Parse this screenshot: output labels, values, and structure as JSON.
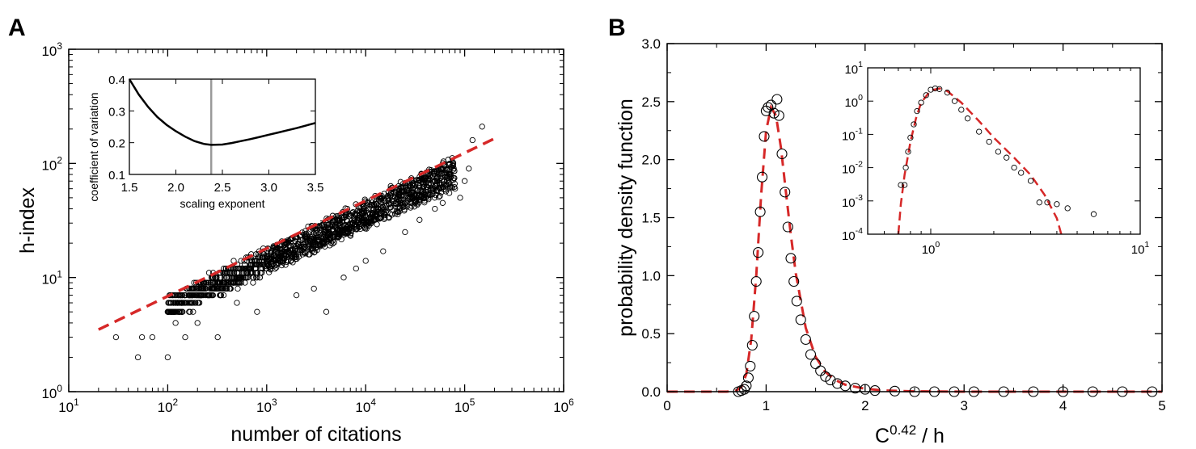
{
  "colors": {
    "fit_line": "#d62828",
    "markers": "#000000",
    "reference_line": "#9a9a9a",
    "axes": "#000000"
  },
  "chart_data": [
    {
      "panel": "A",
      "type": "scatter",
      "xlabel": "number of citations",
      "ylabel": "h-index",
      "xscale": "log",
      "yscale": "log",
      "xlim": [
        10,
        1000000
      ],
      "ylim": [
        1,
        1000
      ],
      "xticks": [
        10,
        100,
        1000,
        10000,
        100000,
        1000000
      ],
      "xtick_labels": [
        [
          "10",
          "1"
        ],
        [
          "10",
          "2"
        ],
        [
          "10",
          "3"
        ],
        [
          "10",
          "4"
        ],
        [
          "10",
          "5"
        ],
        [
          "10",
          "6"
        ]
      ],
      "yticks": [
        1,
        10,
        100,
        1000
      ],
      "ytick_labels": [
        [
          "10",
          "0"
        ],
        [
          "10",
          "1"
        ],
        [
          "10",
          "2"
        ],
        [
          "10",
          "3"
        ]
      ],
      "fit_line": {
        "style": "dashed",
        "x": [
          20,
          200000
        ],
        "y": [
          3.5,
          165
        ]
      },
      "scatter_points": [
        [
          30,
          3
        ],
        [
          50,
          2
        ],
        [
          55,
          3
        ],
        [
          70,
          3
        ],
        [
          100,
          2
        ],
        [
          120,
          4
        ],
        [
          150,
          3
        ],
        [
          200,
          4
        ],
        [
          320,
          3
        ],
        [
          500,
          6
        ],
        [
          800,
          5
        ],
        [
          2000,
          7
        ],
        [
          4000,
          5
        ],
        [
          3000,
          8
        ],
        [
          6000,
          10
        ],
        [
          8000,
          12
        ],
        [
          10000,
          14
        ],
        [
          15000,
          17
        ],
        [
          25000,
          25
        ],
        [
          35000,
          32
        ],
        [
          50000,
          40
        ],
        [
          60000,
          45
        ],
        [
          70000,
          55
        ],
        [
          80000,
          60
        ],
        [
          90000,
          50
        ],
        [
          100000,
          70
        ],
        [
          110000,
          90
        ],
        [
          120000,
          160
        ],
        [
          150000,
          210
        ]
      ],
      "inset": {
        "type": "line",
        "xlabel": "scaling exponent",
        "ylabel": "coefficient of variation",
        "xlim": [
          1.5,
          3.5
        ],
        "ylim": [
          0.1,
          0.4
        ],
        "xticks": [
          "1.5",
          "2.0",
          "2.5",
          "3.0",
          "3.5"
        ],
        "yticks": [
          "0.1",
          "0.2",
          "0.3",
          "0.4"
        ],
        "reference_x": 2.38,
        "curve": {
          "x": [
            1.5,
            1.6,
            1.7,
            1.8,
            1.9,
            2.0,
            2.1,
            2.2,
            2.3,
            2.38,
            2.5,
            2.6,
            2.7,
            2.8,
            2.9,
            3.0,
            3.1,
            3.2,
            3.3,
            3.4,
            3.5
          ],
          "y": [
            0.4,
            0.352,
            0.313,
            0.281,
            0.256,
            0.236,
            0.219,
            0.205,
            0.196,
            0.193,
            0.194,
            0.199,
            0.205,
            0.211,
            0.218,
            0.225,
            0.232,
            0.239,
            0.246,
            0.254,
            0.262
          ]
        }
      }
    },
    {
      "panel": "B",
      "type": "scatter",
      "xlabel": "C",
      "xlabel_sup": "0.42",
      "xlabel_suffix": " / h",
      "ylabel": "probability density function",
      "xlim": [
        0,
        5
      ],
      "ylim": [
        0,
        3.0
      ],
      "xticks": [
        "0",
        "1",
        "2",
        "3",
        "4",
        "5"
      ],
      "yticks": [
        "0.0",
        "0.5",
        "1.0",
        "1.5",
        "2.0",
        "2.5",
        "3.0"
      ],
      "scatter_points": [
        [
          0.72,
          0.0
        ],
        [
          0.75,
          0.01
        ],
        [
          0.78,
          0.02
        ],
        [
          0.8,
          0.05
        ],
        [
          0.82,
          0.12
        ],
        [
          0.84,
          0.22
        ],
        [
          0.86,
          0.4
        ],
        [
          0.88,
          0.65
        ],
        [
          0.9,
          0.95
        ],
        [
          0.92,
          1.2
        ],
        [
          0.94,
          1.55
        ],
        [
          0.96,
          1.85
        ],
        [
          0.98,
          2.2
        ],
        [
          1.0,
          2.42
        ],
        [
          1.02,
          2.45
        ],
        [
          1.05,
          2.47
        ],
        [
          1.08,
          2.4
        ],
        [
          1.11,
          2.52
        ],
        [
          1.13,
          2.38
        ],
        [
          1.16,
          2.05
        ],
        [
          1.19,
          1.72
        ],
        [
          1.22,
          1.42
        ],
        [
          1.25,
          1.15
        ],
        [
          1.28,
          0.95
        ],
        [
          1.31,
          0.78
        ],
        [
          1.35,
          0.62
        ],
        [
          1.4,
          0.45
        ],
        [
          1.45,
          0.32
        ],
        [
          1.5,
          0.24
        ],
        [
          1.55,
          0.18
        ],
        [
          1.6,
          0.13
        ],
        [
          1.65,
          0.1
        ],
        [
          1.72,
          0.07
        ],
        [
          1.8,
          0.05
        ],
        [
          1.9,
          0.03
        ],
        [
          2.0,
          0.02
        ],
        [
          2.1,
          0.01
        ],
        [
          2.3,
          0.005
        ],
        [
          2.5,
          0.0
        ],
        [
          2.7,
          0.0
        ],
        [
          2.9,
          0.0
        ],
        [
          3.1,
          0.0
        ],
        [
          3.4,
          0.0
        ],
        [
          3.7,
          0.0
        ],
        [
          4.0,
          0.0
        ],
        [
          4.3,
          0.0
        ],
        [
          4.6,
          0.0
        ],
        [
          4.9,
          0.0
        ]
      ],
      "fit_curve": {
        "style": "dashed",
        "x": [
          0.0,
          0.6,
          0.7,
          0.75,
          0.8,
          0.85,
          0.9,
          0.95,
          1.0,
          1.05,
          1.1,
          1.15,
          1.2,
          1.25,
          1.3,
          1.4,
          1.5,
          1.6,
          1.7,
          1.8,
          2.0,
          2.2,
          2.5,
          3.0,
          5.0
        ],
        "y": [
          0.0,
          0.0,
          0.01,
          0.04,
          0.15,
          0.45,
          1.0,
          1.7,
          2.25,
          2.45,
          2.38,
          2.1,
          1.72,
          1.35,
          1.02,
          0.55,
          0.3,
          0.17,
          0.1,
          0.06,
          0.025,
          0.01,
          0.003,
          0.0,
          0.0
        ]
      },
      "inset": {
        "type": "scatter",
        "xscale": "log",
        "yscale": "log",
        "xlim": [
          0.5,
          10
        ],
        "ylim": [
          0.0001,
          10
        ],
        "xticks": [
          1,
          10
        ],
        "xtick_labels": [
          [
            "10",
            "0"
          ],
          [
            "10",
            "1"
          ]
        ],
        "yticks": [
          0.0001,
          0.001,
          0.01,
          0.1,
          1,
          10
        ],
        "ytick_labels": [
          [
            "10",
            "-4"
          ],
          [
            "10",
            "-3"
          ],
          [
            "10",
            "-2"
          ],
          [
            "10",
            "-1"
          ],
          [
            "10",
            "0"
          ],
          [
            "10",
            "1"
          ]
        ],
        "scatter_points": [
          [
            0.72,
            0.003
          ],
          [
            0.75,
            0.003
          ],
          [
            0.76,
            0.01
          ],
          [
            0.78,
            0.03
          ],
          [
            0.8,
            0.08
          ],
          [
            0.83,
            0.2
          ],
          [
            0.86,
            0.5
          ],
          [
            0.9,
            0.9
          ],
          [
            0.95,
            1.5
          ],
          [
            1.0,
            2.2
          ],
          [
            1.05,
            2.4
          ],
          [
            1.1,
            2.3
          ],
          [
            1.2,
            1.8
          ],
          [
            1.3,
            1.0
          ],
          [
            1.4,
            0.55
          ],
          [
            1.5,
            0.3
          ],
          [
            1.7,
            0.12
          ],
          [
            1.9,
            0.06
          ],
          [
            2.1,
            0.03
          ],
          [
            2.3,
            0.02
          ],
          [
            2.5,
            0.01
          ],
          [
            2.7,
            0.007
          ],
          [
            3.0,
            0.004
          ],
          [
            3.3,
            0.0009
          ],
          [
            3.6,
            0.0009
          ],
          [
            4.0,
            0.0008
          ],
          [
            4.5,
            0.0006
          ],
          [
            6.0,
            0.0004
          ]
        ],
        "fit_curve": {
          "x": [
            0.7,
            0.72,
            0.75,
            0.8,
            0.85,
            0.9,
            1.0,
            1.1,
            1.2,
            1.4,
            1.7,
            2.0,
            2.5,
            3.0,
            3.5,
            4.0,
            4.2
          ],
          "y": [
            0.0001,
            0.0008,
            0.006,
            0.06,
            0.3,
            0.9,
            2.1,
            2.4,
            2.0,
            0.9,
            0.25,
            0.08,
            0.02,
            0.006,
            0.0015,
            0.0003,
            0.0001
          ]
        }
      }
    }
  ]
}
